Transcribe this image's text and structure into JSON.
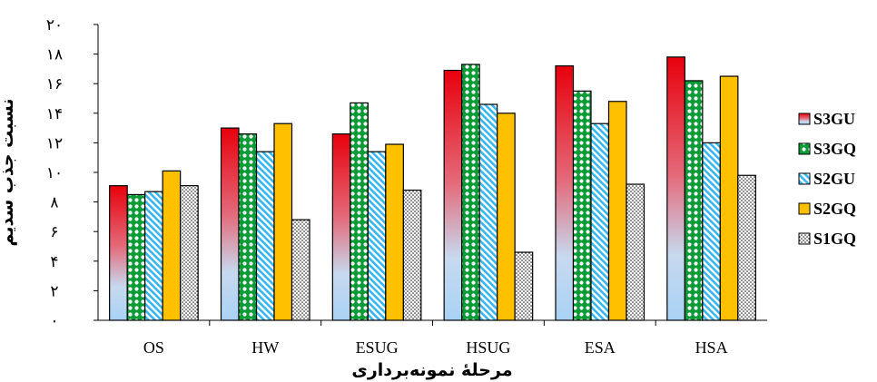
{
  "chart_data": {
    "type": "bar",
    "xlabel": "مرحلهٔ نمونه‌برداری",
    "ylabel": "نسبت جذب سدیم",
    "ylim": [
      0,
      20
    ],
    "yticks": [
      0,
      2,
      4,
      6,
      8,
      10,
      12,
      14,
      16,
      18,
      20
    ],
    "ytick_labels": [
      "۰",
      "۲",
      "۴",
      "۶",
      "۸",
      "۱۰",
      "۱۲",
      "۱۴",
      "۱۶",
      "۱۸",
      "۲۰"
    ],
    "grid": false,
    "legend_position": "right",
    "categories": [
      "OS",
      "HW",
      "ESUG",
      "HSUG",
      "ESA",
      "HSA"
    ],
    "series": [
      {
        "name": "S3GU",
        "pattern": "gradient-red-blue",
        "color": "#e8000c",
        "values": [
          9.1,
          13.0,
          12.6,
          16.9,
          17.2,
          17.8
        ]
      },
      {
        "name": "S3GQ",
        "pattern": "green-dots",
        "color": "#0a9a36",
        "values": [
          8.5,
          12.6,
          14.7,
          17.3,
          15.5,
          16.2
        ]
      },
      {
        "name": "S2GU",
        "pattern": "blue-diagonal",
        "color": "#4fc3f7",
        "values": [
          8.7,
          11.4,
          11.4,
          14.6,
          13.3,
          12.0
        ]
      },
      {
        "name": "S2GQ",
        "pattern": "solid-orange",
        "color": "#ffc000",
        "values": [
          10.1,
          13.3,
          11.9,
          14.0,
          14.8,
          16.5
        ]
      },
      {
        "name": "S1GQ",
        "pattern": "black-dots",
        "color": "#000000",
        "values": [
          9.1,
          6.8,
          8.8,
          4.6,
          9.2,
          9.8
        ]
      }
    ]
  }
}
